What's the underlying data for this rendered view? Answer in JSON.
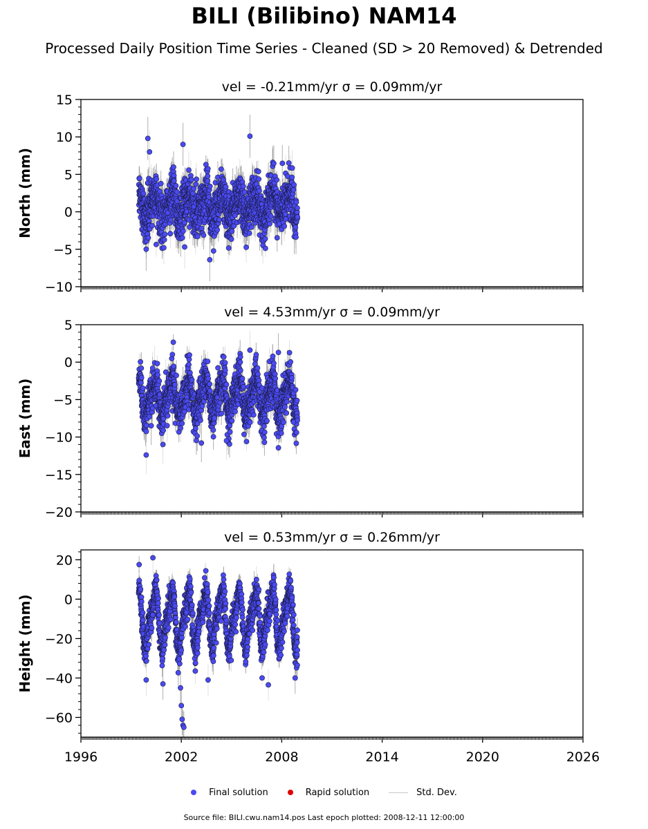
{
  "title": "BILI (Bilibino) NAM14",
  "subtitle": "Processed Daily Position Time Series - Cleaned (SD > 20 Removed) & Detrended",
  "footer": "Source file: BILI.cwu.nam14.pos  Last epoch plotted: 2008-12-11 12:00:00",
  "legend": {
    "final": "Final solution",
    "rapid": "Rapid solution",
    "stddev": "Std. Dev."
  },
  "colors": {
    "final": "#4a4af2",
    "rapid": "#e00000",
    "stddev": "#c8c8c8"
  },
  "chart_data": [
    {
      "type": "scatter",
      "title": "vel = -0.21mm/yr   σ = 0.09mm/yr",
      "ylabel": "North (mm)",
      "xlim": [
        1996,
        2026
      ],
      "ylim": [
        -10,
        15
      ],
      "yticks": [
        -10,
        -5,
        0,
        5,
        10,
        15
      ],
      "xticks": [
        1996,
        2002,
        2008,
        2014,
        2020,
        2026
      ],
      "series_name": "Final solution",
      "x_start": 1999.45,
      "x_end": 2008.94,
      "amplitude": 1.4,
      "offset": 0.8,
      "noise": 2.0,
      "err": 1.8,
      "outliers": [
        [
          2000.0,
          9.8
        ],
        [
          2000.1,
          8.0
        ],
        [
          2002.1,
          9.0
        ],
        [
          2006.1,
          10.1
        ],
        [
          2003.7,
          -6.4
        ],
        [
          1999.9,
          -5.0
        ],
        [
          2002.2,
          -4.7
        ]
      ]
    },
    {
      "type": "scatter",
      "title": "vel = 4.53mm/yr   σ = 0.09mm/yr",
      "ylabel": "East (mm)",
      "xlim": [
        1996,
        2026
      ],
      "ylim": [
        -20,
        5
      ],
      "yticks": [
        -20,
        -15,
        -10,
        -5,
        0,
        5
      ],
      "xticks": [
        1996,
        2002,
        2008,
        2014,
        2020,
        2026
      ],
      "series_name": "Final solution",
      "x_start": 1999.45,
      "x_end": 2008.94,
      "amplitude": 2.2,
      "offset": -4.6,
      "noise": 1.7,
      "err": 1.6,
      "outliers": [
        [
          1999.9,
          -12.4
        ],
        [
          2000.2,
          -8.5
        ],
        [
          2000.9,
          -11.0
        ],
        [
          2003.2,
          -10.8
        ],
        [
          2004.7,
          -10.5
        ],
        [
          2008.7,
          -8.0
        ],
        [
          2006.1,
          1.6
        ],
        [
          2007.8,
          1.3
        ]
      ]
    },
    {
      "type": "scatter",
      "title": "vel = 0.53mm/yr   σ = 0.26mm/yr",
      "ylabel": "Height (mm)",
      "xlim": [
        1996,
        2026
      ],
      "ylim": [
        -70,
        25
      ],
      "yticks": [
        -60,
        -40,
        -20,
        0,
        20
      ],
      "xticks": [
        1996,
        2002,
        2008,
        2014,
        2020,
        2026
      ],
      "series_name": "Final solution",
      "x_start": 1999.45,
      "x_end": 2008.94,
      "amplitude": 13,
      "offset": -10,
      "noise": 5,
      "err": 5,
      "outliers": [
        [
          2002.0,
          -54
        ],
        [
          2002.05,
          -61
        ],
        [
          2002.1,
          -64
        ],
        [
          2002.15,
          -65
        ],
        [
          2001.95,
          -45
        ],
        [
          2000.9,
          -43
        ],
        [
          2003.6,
          -41
        ],
        [
          2007.2,
          -43.5
        ],
        [
          2000.3,
          21
        ],
        [
          2008.8,
          -40
        ],
        [
          1999.9,
          -41
        ]
      ]
    }
  ]
}
